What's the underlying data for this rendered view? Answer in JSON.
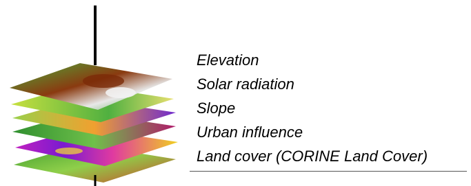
{
  "layers": [
    "Elevation",
    "Solar radiation",
    "Slope",
    "Urban influence",
    "Land cover (CORINE Land Cover)"
  ]
}
